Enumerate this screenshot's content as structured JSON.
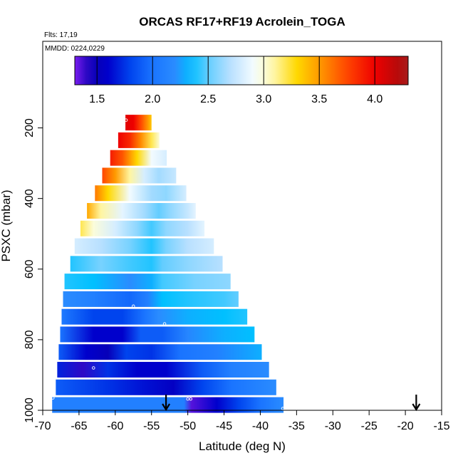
{
  "chart_data": {
    "type": "heatmap",
    "title": "ORCAS RF17+RF19 Acrolein_TOGA",
    "annotations": [
      "Flts: 17,19",
      "MMDD: 0224,0229"
    ],
    "xlabel": "Latitude (deg N)",
    "ylabel": "PSXC (mbar)",
    "xlim": [
      -70,
      -15
    ],
    "ylim": [
      1000,
      100
    ],
    "x_ticks": [
      -70,
      -65,
      -60,
      -55,
      -50,
      -45,
      -40,
      -35,
      -30,
      -25,
      -20,
      -15
    ],
    "y_ticks": [
      200,
      400,
      600,
      800,
      1000
    ],
    "colorbar": {
      "range": [
        1.3,
        4.3
      ],
      "ticks": [
        "1.5",
        "2.0",
        "2.5",
        "3.0",
        "3.5",
        "4.0"
      ],
      "tick_values": [
        1.5,
        2.0,
        2.5,
        3.0,
        3.5,
        4.0
      ]
    },
    "rows": [
      {
        "p": 985,
        "lat_min": -68.7,
        "lat_max": -36.8,
        "stops": [
          [
            -68.7,
            2.1
          ],
          [
            -50.5,
            2.1
          ],
          [
            -49.5,
            1.35
          ],
          [
            -46,
            1.6
          ],
          [
            -43,
            1.8
          ],
          [
            -40,
            2.0
          ],
          [
            -36.8,
            2.2
          ]
        ]
      },
      {
        "p": 935,
        "lat_min": -68.2,
        "lat_max": -37.8,
        "stops": [
          [
            -68.2,
            1.9
          ],
          [
            -61,
            1.75
          ],
          [
            -56,
            1.65
          ],
          [
            -52,
            1.55
          ],
          [
            -48,
            1.8
          ],
          [
            -44,
            2.0
          ],
          [
            -37.8,
            2.2
          ]
        ]
      },
      {
        "p": 885,
        "lat_min": -68.0,
        "lat_max": -38.8,
        "stops": [
          [
            -68.0,
            1.7
          ],
          [
            -64.5,
            1.4
          ],
          [
            -61,
            1.75
          ],
          [
            -57,
            1.6
          ],
          [
            -53,
            1.6
          ],
          [
            -48,
            1.9
          ],
          [
            -44,
            2.1
          ],
          [
            -38.8,
            2.2
          ]
        ]
      },
      {
        "p": 835,
        "lat_min": -67.8,
        "lat_max": -39.8,
        "stops": [
          [
            -67.8,
            1.9
          ],
          [
            -64,
            1.6
          ],
          [
            -61,
            1.5
          ],
          [
            -58.5,
            1.8
          ],
          [
            -55,
            1.75
          ],
          [
            -51,
            2.0
          ],
          [
            -46,
            2.1
          ],
          [
            -39.8,
            2.3
          ]
        ]
      },
      {
        "p": 785,
        "lat_min": -67.6,
        "lat_max": -40.8,
        "stops": [
          [
            -67.6,
            2.0
          ],
          [
            -63,
            1.6
          ],
          [
            -59,
            1.6
          ],
          [
            -56.5,
            1.9
          ],
          [
            -53.5,
            1.9
          ],
          [
            -50,
            2.15
          ],
          [
            -45,
            2.3
          ],
          [
            -40.8,
            2.35
          ]
        ]
      },
      {
        "p": 735,
        "lat_min": -67.4,
        "lat_max": -41.8,
        "stops": [
          [
            -67.4,
            2.05
          ],
          [
            -63,
            1.8
          ],
          [
            -59,
            1.8
          ],
          [
            -56,
            2.0
          ],
          [
            -54,
            2.2
          ],
          [
            -50,
            2.3
          ],
          [
            -45,
            2.35
          ],
          [
            -41.8,
            2.4
          ]
        ]
      },
      {
        "p": 685,
        "lat_min": -67.2,
        "lat_max": -43.0,
        "stops": [
          [
            -67.2,
            2.2
          ],
          [
            -63,
            2.1
          ],
          [
            -58,
            1.95
          ],
          [
            -55.5,
            2.1
          ],
          [
            -53.5,
            2.35
          ],
          [
            -50,
            2.4
          ],
          [
            -45,
            2.45
          ],
          [
            -43.0,
            2.5
          ]
        ]
      },
      {
        "p": 635,
        "lat_min": -67.0,
        "lat_max": -44.1,
        "stops": [
          [
            -67.0,
            2.4
          ],
          [
            -63,
            2.35
          ],
          [
            -58,
            2.2
          ],
          [
            -55,
            2.3
          ],
          [
            -53.5,
            2.45
          ],
          [
            -49,
            2.55
          ],
          [
            -44.1,
            2.6
          ]
        ]
      },
      {
        "p": 585,
        "lat_min": -66.2,
        "lat_max": -45.2,
        "stops": [
          [
            -66.2,
            2.4
          ],
          [
            -62,
            2.55
          ],
          [
            -58,
            2.45
          ],
          [
            -55,
            2.4
          ],
          [
            -53.5,
            2.5
          ],
          [
            -50,
            2.6
          ],
          [
            -45.2,
            2.7
          ]
        ]
      },
      {
        "p": 535,
        "lat_min": -65.6,
        "lat_max": -46.4,
        "stops": [
          [
            -65.6,
            2.8
          ],
          [
            -62,
            2.7
          ],
          [
            -58,
            2.55
          ],
          [
            -55,
            2.4
          ],
          [
            -53,
            2.55
          ],
          [
            -50,
            2.7
          ],
          [
            -46.4,
            2.8
          ]
        ]
      },
      {
        "p": 485,
        "lat_min": -64.8,
        "lat_max": -47.7,
        "stops": [
          [
            -64.8,
            3.2
          ],
          [
            -63,
            3.0
          ],
          [
            -60,
            2.8
          ],
          [
            -57,
            2.6
          ],
          [
            -55,
            2.45
          ],
          [
            -53,
            2.6
          ],
          [
            -50,
            2.7
          ],
          [
            -47.7,
            2.85
          ]
        ]
      },
      {
        "p": 435,
        "lat_min": -63.9,
        "lat_max": -48.9,
        "stops": [
          [
            -63.9,
            3.45
          ],
          [
            -62,
            3.1
          ],
          [
            -59,
            2.85
          ],
          [
            -56,
            2.65
          ],
          [
            -54,
            2.5
          ],
          [
            -52.5,
            2.6
          ],
          [
            -50,
            2.75
          ],
          [
            -48.9,
            2.85
          ]
        ]
      },
      {
        "p": 385,
        "lat_min": -62.8,
        "lat_max": -50.2,
        "stops": [
          [
            -62.8,
            3.6
          ],
          [
            -61,
            3.3
          ],
          [
            -58,
            2.9
          ],
          [
            -55,
            2.65
          ],
          [
            -53,
            2.6
          ],
          [
            -50.2,
            2.8
          ]
        ]
      },
      {
        "p": 335,
        "lat_min": -61.8,
        "lat_max": -51.6,
        "stops": [
          [
            -61.8,
            3.75
          ],
          [
            -60,
            3.5
          ],
          [
            -58,
            3.1
          ],
          [
            -56,
            2.8
          ],
          [
            -54,
            2.65
          ],
          [
            -51.6,
            2.75
          ]
        ]
      },
      {
        "p": 285,
        "lat_min": -60.7,
        "lat_max": -52.9,
        "stops": [
          [
            -60.7,
            3.9
          ],
          [
            -59,
            3.7
          ],
          [
            -57,
            3.3
          ],
          [
            -55,
            2.9
          ],
          [
            -52.9,
            2.8
          ]
        ]
      },
      {
        "p": 235,
        "lat_min": -59.6,
        "lat_max": -53.9,
        "stops": [
          [
            -59.6,
            4.0
          ],
          [
            -58,
            3.85
          ],
          [
            -56.5,
            3.55
          ],
          [
            -55,
            3.2
          ],
          [
            -53.9,
            3.0
          ]
        ]
      },
      {
        "p": 185,
        "lat_min": -58.6,
        "lat_max": -55.0,
        "stops": [
          [
            -58.6,
            4.05
          ],
          [
            -57.5,
            4.0
          ],
          [
            -56.5,
            3.75
          ],
          [
            -55.5,
            3.5
          ],
          [
            -55.0,
            3.35
          ]
        ]
      }
    ],
    "points": [
      {
        "lat": -68.6,
        "p": 965
      },
      {
        "lat": -67.5,
        "p": 620
      },
      {
        "lat": -63.0,
        "p": 880
      },
      {
        "lat": -57.5,
        "p": 705
      },
      {
        "lat": -53.2,
        "p": 755
      },
      {
        "lat": -50.0,
        "p": 968
      },
      {
        "lat": -49.6,
        "p": 968
      },
      {
        "lat": -36.9,
        "p": 995
      },
      {
        "lat": -58.5,
        "p": 178
      }
    ],
    "arrows": [
      {
        "lat": -53.0,
        "p": 1000
      },
      {
        "lat": -18.5,
        "p": 1000
      }
    ]
  }
}
